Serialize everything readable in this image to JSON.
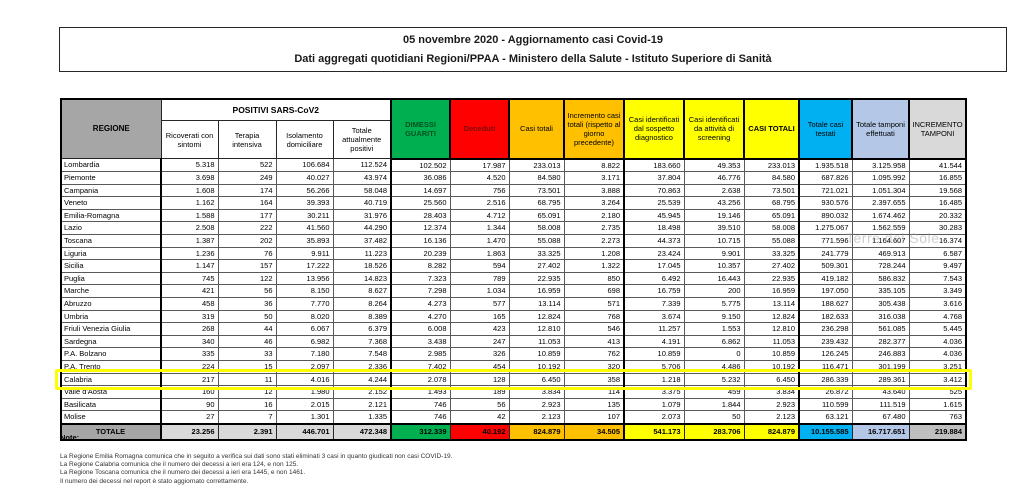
{
  "title": {
    "line1": "05 novembre 2020 - Aggiornamento casi Covid-19",
    "line2": "Dati aggregati quotidiani Regioni/PPAA - Ministero della Salute - Istituto Superiore di Sanità"
  },
  "table": {
    "region_header": "REGIONE",
    "group_header": "POSITIVI SARS-CoV2",
    "sub_headers": [
      "Ricoverati con sintomi",
      "Terapia intensiva",
      "Isolamento domiciliare",
      "Totale attualmente positivi"
    ],
    "col_headers": [
      "DIMESSI GUARITI",
      "Deceduti",
      "Casi totali",
      "Incremento casi totali (rispetto al giorno precedente)",
      "Casi identificati dal sospetto diagnostico",
      "Casi identificati da attività di screening",
      "CASI TOTALI",
      "Totale casi testati",
      "Totale tamponi effettuati",
      "INCREMENTO TAMPONI"
    ],
    "rows": [
      {
        "region": "Lombardia",
        "values": [
          "5.318",
          "522",
          "106.684",
          "112.524",
          "102.502",
          "17.987",
          "233.013",
          "8.822",
          "183.660",
          "49.353",
          "233.013",
          "1.935.518",
          "3.125.958",
          "41.544"
        ]
      },
      {
        "region": "Piemonte",
        "values": [
          "3.698",
          "249",
          "40.027",
          "43.974",
          "36.086",
          "4.520",
          "84.580",
          "3.171",
          "37.804",
          "46.776",
          "84.580",
          "687.826",
          "1.095.992",
          "16.855"
        ]
      },
      {
        "region": "Campania",
        "values": [
          "1.608",
          "174",
          "56.266",
          "58.048",
          "14.697",
          "756",
          "73.501",
          "3.888",
          "70.863",
          "2.638",
          "73.501",
          "721.021",
          "1.051.304",
          "19.568"
        ]
      },
      {
        "region": "Veneto",
        "values": [
          "1.162",
          "164",
          "39.393",
          "40.719",
          "25.560",
          "2.516",
          "68.795",
          "3.264",
          "25.539",
          "43.256",
          "68.795",
          "930.576",
          "2.397.655",
          "16.485"
        ]
      },
      {
        "region": "Emilia-Romagna",
        "values": [
          "1.588",
          "177",
          "30.211",
          "31.976",
          "28.403",
          "4.712",
          "65.091",
          "2.180",
          "45.945",
          "19.146",
          "65.091",
          "890.032",
          "1.674.462",
          "20.332"
        ]
      },
      {
        "region": "Lazio",
        "values": [
          "2.508",
          "222",
          "41.560",
          "44.290",
          "12.374",
          "1.344",
          "58.008",
          "2.735",
          "18.498",
          "39.510",
          "58.008",
          "1.275.067",
          "1.562.559",
          "30.283"
        ]
      },
      {
        "region": "Toscana",
        "values": [
          "1.387",
          "202",
          "35.893",
          "37.482",
          "16.136",
          "1.470",
          "55.088",
          "2.273",
          "44.373",
          "10.715",
          "55.088",
          "771.596",
          "1.164.607",
          "16.374"
        ]
      },
      {
        "region": "Liguria",
        "values": [
          "1.236",
          "76",
          "9.911",
          "11.223",
          "20.239",
          "1.863",
          "33.325",
          "1.208",
          "23.424",
          "9.901",
          "33.325",
          "241.779",
          "469.913",
          "6.587"
        ]
      },
      {
        "region": "Sicilia",
        "values": [
          "1.147",
          "157",
          "17.222",
          "18.526",
          "8.282",
          "594",
          "27.402",
          "1.322",
          "17.045",
          "10.357",
          "27.402",
          "509.301",
          "728.244",
          "9.497"
        ]
      },
      {
        "region": "Puglia",
        "values": [
          "745",
          "122",
          "13.956",
          "14.823",
          "7.323",
          "789",
          "22.935",
          "850",
          "6.492",
          "16.443",
          "22.935",
          "419.182",
          "586.832",
          "7.543"
        ]
      },
      {
        "region": "Marche",
        "values": [
          "421",
          "56",
          "8.150",
          "8.627",
          "7.298",
          "1.034",
          "16.959",
          "698",
          "16.759",
          "200",
          "16.959",
          "197.050",
          "335.105",
          "3.349"
        ]
      },
      {
        "region": "Abruzzo",
        "values": [
          "458",
          "36",
          "7.770",
          "8.264",
          "4.273",
          "577",
          "13.114",
          "571",
          "7.339",
          "5.775",
          "13.114",
          "188.627",
          "305.438",
          "3.616"
        ]
      },
      {
        "region": "Umbria",
        "values": [
          "319",
          "50",
          "8.020",
          "8.389",
          "4.270",
          "165",
          "12.824",
          "768",
          "3.674",
          "9.150",
          "12.824",
          "182.633",
          "316.038",
          "4.768"
        ]
      },
      {
        "region": "Friuli Venezia Giulia",
        "values": [
          "268",
          "44",
          "6.067",
          "6.379",
          "6.008",
          "423",
          "12.810",
          "546",
          "11.257",
          "1.553",
          "12.810",
          "236.298",
          "561.085",
          "5.445"
        ]
      },
      {
        "region": "Sardegna",
        "values": [
          "340",
          "46",
          "6.982",
          "7.368",
          "3.438",
          "247",
          "11.053",
          "413",
          "4.191",
          "6.862",
          "11.053",
          "239.432",
          "282.377",
          "4.036"
        ]
      },
      {
        "region": "P.A. Bolzano",
        "values": [
          "335",
          "33",
          "7.180",
          "7.548",
          "2.985",
          "326",
          "10.859",
          "762",
          "10.859",
          "0",
          "10.859",
          "126.245",
          "246.883",
          "4.036"
        ]
      },
      {
        "region": "P.A. Trento",
        "values": [
          "224",
          "15",
          "2.097",
          "2.336",
          "7.402",
          "454",
          "10.192",
          "320",
          "5.706",
          "4.486",
          "10.192",
          "116.471",
          "301.199",
          "3.251"
        ]
      },
      {
        "region": "Calabria",
        "values": [
          "217",
          "11",
          "4.016",
          "4.244",
          "2.078",
          "128",
          "6.450",
          "358",
          "1.218",
          "5.232",
          "6.450",
          "286.339",
          "289.361",
          "3.412"
        ]
      },
      {
        "region": "Valle d'Aosta",
        "values": [
          "160",
          "12",
          "1.980",
          "2.152",
          "1.493",
          "189",
          "3.834",
          "114",
          "3.375",
          "459",
          "3.834",
          "26.872",
          "43.640",
          "525"
        ]
      },
      {
        "region": "Basilicata",
        "values": [
          "90",
          "16",
          "2.015",
          "2.121",
          "746",
          "56",
          "2.923",
          "135",
          "1.079",
          "1.844",
          "2.923",
          "110.599",
          "111.519",
          "1.615"
        ]
      },
      {
        "region": "Molise",
        "values": [
          "27",
          "7",
          "1.301",
          "1.335",
          "746",
          "42",
          "2.123",
          "107",
          "2.073",
          "50",
          "2.123",
          "63.121",
          "67.480",
          "763"
        ]
      }
    ],
    "total": {
      "label": "TOTALE",
      "values": [
        "23.256",
        "2.391",
        "446.701",
        "472.348",
        "312.339",
        "40.192",
        "824.879",
        "34.505",
        "541.173",
        "283.706",
        "824.879",
        "10.155.585",
        "16.717.651",
        "219.884"
      ]
    }
  },
  "highlight": {
    "region": "Calabria",
    "color": "#FFFF00"
  },
  "watermark": "Terre del Sole",
  "notes": {
    "heading": "Note:",
    "lines": [
      "La Regione Emilia Romagna comunica che in seguito a verifica sui dati sono stati eliminati 3 casi in quanto giudicati non casi COVID-19.",
      "La Regione Calabria comunica che il numero dei decessi a ieri era 124, e non 125.",
      "La Regione Toscana comunica che il numero dei decessi a ieri era 1445, e non 1461.",
      "Il numero dei decessi nel report è stato aggiornato correttamente."
    ]
  },
  "colors": {
    "green": "#00B050",
    "green_text": "#05511F",
    "red": "#FF0000",
    "red_text": "#7B0C0C",
    "amber": "#FFC000",
    "yellow": "#FFFF00",
    "cyan": "#00B0F0",
    "periwinkle": "#B4C7E7",
    "gray_header": "#A6A6A6",
    "gray_light": "#D9D9D9",
    "gray_mid": "#BFBFBF"
  }
}
